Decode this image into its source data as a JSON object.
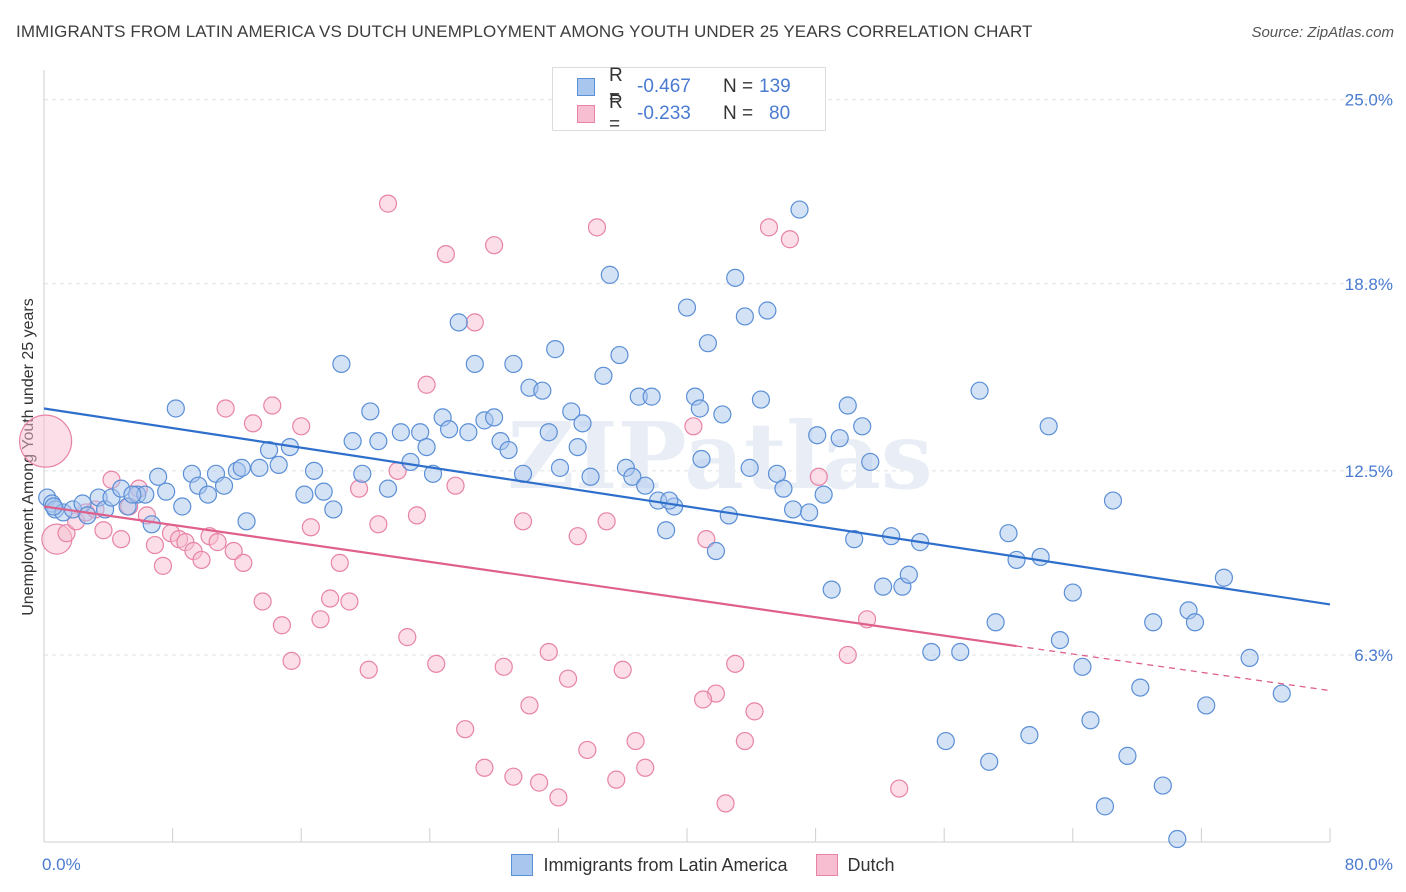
{
  "title": "IMMIGRANTS FROM LATIN AMERICA VS DUTCH UNEMPLOYMENT AMONG YOUTH UNDER 25 YEARS CORRELATION CHART",
  "source": "Source: ZipAtlas.com",
  "watermark": "ZIPatlas",
  "legend": {
    "rows": [
      {
        "r_label": "R =",
        "r_value": "-0.467",
        "n_label": "N =",
        "n_value": "139"
      },
      {
        "r_label": "R =",
        "r_value": "-0.233",
        "n_label": "N =",
        "n_value": "80"
      }
    ]
  },
  "bottom_legend": [
    "Immigrants from Latin America",
    "Dutch"
  ],
  "chart_data": {
    "type": "scatter",
    "xlabel": "",
    "ylabel": "Unemployment Among Youth under 25 years",
    "xlim": [
      0,
      80
    ],
    "ylim": [
      0,
      26
    ],
    "x_tick_labels": [
      "0.0%",
      "80.0%"
    ],
    "y_ticks": [
      6.3,
      12.5,
      18.8,
      25.0
    ],
    "y_tick_labels": [
      "6.3%",
      "12.5%",
      "18.8%",
      "25.0%"
    ],
    "grid": true,
    "legend_position": "top-center",
    "colors": {
      "blue_fill": "#a9c6ee",
      "blue_stroke": "#5b8fd6",
      "blue_line": "#2f6fcc",
      "pink_fill": "#f7bdd0",
      "pink_stroke": "#e883a6",
      "pink_line": "#e0608c",
      "tick_text": "#4a7bd0"
    },
    "series": [
      {
        "name": "Immigrants from Latin America",
        "color": "#5b8fd6",
        "trend": {
          "x0": 0,
          "y0": 14.6,
          "x1": 80,
          "y1": 8.0
        },
        "points": [
          [
            0.2,
            11.6
          ],
          [
            0.5,
            11.4
          ],
          [
            0.7,
            11.2
          ],
          [
            1.2,
            11.1
          ],
          [
            1.8,
            11.2
          ],
          [
            2.4,
            11.4
          ],
          [
            2.7,
            11.0
          ],
          [
            3.4,
            11.6
          ],
          [
            3.8,
            11.2
          ],
          [
            4.2,
            11.6
          ],
          [
            4.8,
            11.9
          ],
          [
            5.2,
            11.3
          ],
          [
            5.8,
            11.7
          ],
          [
            6.3,
            11.7
          ],
          [
            6.7,
            10.7
          ],
          [
            7.1,
            12.3
          ],
          [
            7.6,
            11.8
          ],
          [
            8.2,
            14.6
          ],
          [
            8.6,
            11.3
          ],
          [
            9.2,
            12.4
          ],
          [
            9.6,
            12.0
          ],
          [
            10.2,
            11.7
          ],
          [
            10.7,
            12.4
          ],
          [
            11.2,
            12.0
          ],
          [
            12.0,
            12.5
          ],
          [
            12.6,
            10.8
          ],
          [
            13.4,
            12.6
          ],
          [
            14.0,
            13.2
          ],
          [
            14.6,
            12.7
          ],
          [
            15.3,
            13.3
          ],
          [
            16.2,
            11.7
          ],
          [
            16.8,
            12.5
          ],
          [
            17.4,
            11.8
          ],
          [
            18.0,
            11.2
          ],
          [
            18.5,
            16.1
          ],
          [
            19.2,
            13.5
          ],
          [
            19.8,
            12.4
          ],
          [
            20.3,
            14.5
          ],
          [
            20.8,
            13.5
          ],
          [
            21.4,
            11.9
          ],
          [
            22.2,
            13.8
          ],
          [
            22.8,
            12.8
          ],
          [
            23.4,
            13.8
          ],
          [
            23.8,
            13.3
          ],
          [
            24.2,
            12.4
          ],
          [
            24.8,
            14.3
          ],
          [
            25.2,
            13.9
          ],
          [
            25.8,
            17.5
          ],
          [
            26.4,
            13.8
          ],
          [
            26.8,
            16.1
          ],
          [
            27.4,
            14.2
          ],
          [
            28.0,
            14.3
          ],
          [
            28.4,
            13.5
          ],
          [
            28.9,
            13.2
          ],
          [
            29.2,
            16.1
          ],
          [
            29.8,
            12.4
          ],
          [
            30.2,
            15.3
          ],
          [
            31.0,
            15.2
          ],
          [
            31.4,
            13.8
          ],
          [
            31.8,
            16.6
          ],
          [
            32.1,
            12.6
          ],
          [
            32.8,
            14.5
          ],
          [
            33.2,
            13.3
          ],
          [
            33.5,
            14.1
          ],
          [
            34.0,
            12.3
          ],
          [
            34.8,
            15.7
          ],
          [
            35.2,
            19.1
          ],
          [
            35.8,
            16.4
          ],
          [
            36.2,
            12.6
          ],
          [
            36.6,
            12.3
          ],
          [
            37.0,
            15.0
          ],
          [
            37.4,
            12.0
          ],
          [
            37.8,
            15.0
          ],
          [
            38.2,
            11.5
          ],
          [
            38.7,
            10.5
          ],
          [
            39.2,
            11.3
          ],
          [
            40.0,
            18.0
          ],
          [
            40.5,
            15.0
          ],
          [
            40.8,
            14.6
          ],
          [
            41.3,
            16.8
          ],
          [
            41.8,
            9.8
          ],
          [
            42.2,
            14.4
          ],
          [
            42.6,
            11.0
          ],
          [
            43.0,
            19.0
          ],
          [
            43.6,
            17.7
          ],
          [
            43.9,
            12.6
          ],
          [
            44.6,
            14.9
          ],
          [
            45.0,
            17.9
          ],
          [
            45.6,
            12.4
          ],
          [
            46.0,
            11.9
          ],
          [
            46.6,
            11.2
          ],
          [
            47.0,
            21.3
          ],
          [
            47.6,
            11.1
          ],
          [
            48.1,
            13.7
          ],
          [
            48.5,
            11.7
          ],
          [
            49.0,
            8.5
          ],
          [
            49.5,
            13.6
          ],
          [
            50.0,
            14.7
          ],
          [
            50.4,
            10.2
          ],
          [
            50.9,
            14.0
          ],
          [
            51.4,
            12.8
          ],
          [
            52.2,
            8.6
          ],
          [
            52.7,
            10.3
          ],
          [
            53.4,
            8.6
          ],
          [
            53.8,
            9.0
          ],
          [
            54.5,
            10.1
          ],
          [
            55.2,
            6.4
          ],
          [
            56.1,
            3.4
          ],
          [
            57.0,
            6.4
          ],
          [
            58.2,
            15.2
          ],
          [
            58.8,
            2.7
          ],
          [
            59.2,
            7.4
          ],
          [
            60.0,
            10.4
          ],
          [
            60.5,
            9.5
          ],
          [
            61.3,
            3.6
          ],
          [
            62.0,
            9.6
          ],
          [
            62.5,
            14.0
          ],
          [
            63.2,
            6.8
          ],
          [
            64.0,
            8.4
          ],
          [
            64.6,
            5.9
          ],
          [
            65.1,
            4.1
          ],
          [
            66.0,
            1.2
          ],
          [
            66.5,
            11.5
          ],
          [
            67.4,
            2.9
          ],
          [
            68.2,
            5.2
          ],
          [
            69.0,
            7.4
          ],
          [
            69.6,
            1.9
          ],
          [
            70.5,
            0.1
          ],
          [
            71.2,
            7.8
          ],
          [
            71.6,
            7.4
          ],
          [
            72.3,
            4.6
          ],
          [
            73.4,
            8.9
          ],
          [
            75.0,
            6.2
          ],
          [
            77.0,
            5.0
          ],
          [
            0.6,
            11.3
          ],
          [
            5.5,
            11.7
          ],
          [
            12.3,
            12.6
          ],
          [
            38.9,
            11.5
          ],
          [
            40.9,
            12.9
          ]
        ]
      },
      {
        "name": "Dutch",
        "color": "#e883a6",
        "trend": {
          "x0": 0,
          "y0": 11.3,
          "x1": 60.5,
          "y1": 6.6,
          "dash_to_x": 80,
          "dash_to_y": 5.1
        },
        "points": [
          [
            0.1,
            13.5
          ],
          [
            0.8,
            10.2
          ],
          [
            1.4,
            10.4
          ],
          [
            2.0,
            10.8
          ],
          [
            2.6,
            11.1
          ],
          [
            3.2,
            11.2
          ],
          [
            3.7,
            10.5
          ],
          [
            4.2,
            12.2
          ],
          [
            4.8,
            10.2
          ],
          [
            5.3,
            11.3
          ],
          [
            5.9,
            11.9
          ],
          [
            6.4,
            11.0
          ],
          [
            6.9,
            10.0
          ],
          [
            7.4,
            9.3
          ],
          [
            7.9,
            10.4
          ],
          [
            8.4,
            10.2
          ],
          [
            8.8,
            10.1
          ],
          [
            9.3,
            9.8
          ],
          [
            9.8,
            9.5
          ],
          [
            10.3,
            10.3
          ],
          [
            10.8,
            10.1
          ],
          [
            11.3,
            14.6
          ],
          [
            11.8,
            9.8
          ],
          [
            12.4,
            9.4
          ],
          [
            13.0,
            14.1
          ],
          [
            13.6,
            8.1
          ],
          [
            14.2,
            14.7
          ],
          [
            14.8,
            7.3
          ],
          [
            15.4,
            6.1
          ],
          [
            16.0,
            14.0
          ],
          [
            16.6,
            10.6
          ],
          [
            17.2,
            7.5
          ],
          [
            17.8,
            8.2
          ],
          [
            18.4,
            9.4
          ],
          [
            19.0,
            8.1
          ],
          [
            19.6,
            11.9
          ],
          [
            20.2,
            5.8
          ],
          [
            20.8,
            10.7
          ],
          [
            21.4,
            21.5
          ],
          [
            22.0,
            12.5
          ],
          [
            22.6,
            6.9
          ],
          [
            23.2,
            11.0
          ],
          [
            23.8,
            15.4
          ],
          [
            24.4,
            6.0
          ],
          [
            25.0,
            19.8
          ],
          [
            25.6,
            12.0
          ],
          [
            26.2,
            3.8
          ],
          [
            26.8,
            17.5
          ],
          [
            27.4,
            2.5
          ],
          [
            28.0,
            20.1
          ],
          [
            28.6,
            5.9
          ],
          [
            29.2,
            2.2
          ],
          [
            29.8,
            10.8
          ],
          [
            30.2,
            4.6
          ],
          [
            30.8,
            2.0
          ],
          [
            31.4,
            6.4
          ],
          [
            32.0,
            1.5
          ],
          [
            32.6,
            5.5
          ],
          [
            33.2,
            10.3
          ],
          [
            33.8,
            3.1
          ],
          [
            34.4,
            20.7
          ],
          [
            35.0,
            10.8
          ],
          [
            35.6,
            2.1
          ],
          [
            36.0,
            5.8
          ],
          [
            36.8,
            3.4
          ],
          [
            37.4,
            2.5
          ],
          [
            40.4,
            14.0
          ],
          [
            41.2,
            10.2
          ],
          [
            41.8,
            5.0
          ],
          [
            42.4,
            1.3
          ],
          [
            43.0,
            6.0
          ],
          [
            43.6,
            3.4
          ],
          [
            44.2,
            4.4
          ],
          [
            45.1,
            20.7
          ],
          [
            46.4,
            20.3
          ],
          [
            48.2,
            12.3
          ],
          [
            50.0,
            6.3
          ],
          [
            51.2,
            7.5
          ],
          [
            53.2,
            1.8
          ],
          [
            41.0,
            4.8
          ]
        ]
      }
    ]
  }
}
